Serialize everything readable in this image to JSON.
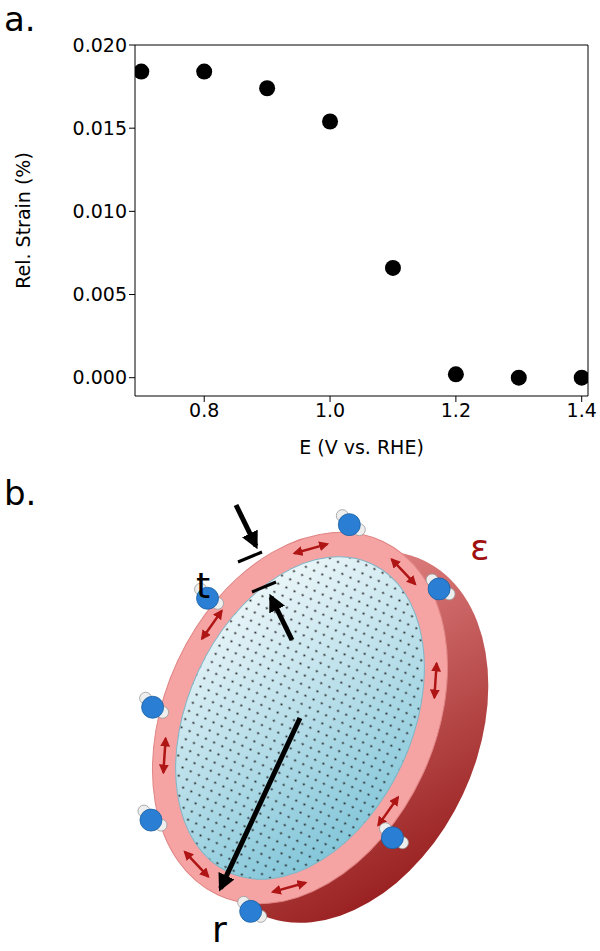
{
  "chart_data": {
    "type": "scatter",
    "panel_label": "a.",
    "x": [
      0.7,
      0.8,
      0.9,
      1.0,
      1.1,
      1.2,
      1.3,
      1.4
    ],
    "values": [
      0.0184,
      0.0184,
      0.0174,
      0.0154,
      0.0066,
      0.0002,
      0.0,
      0.0
    ],
    "color": "#000000",
    "marker": "circle",
    "xlabel": "E (V vs. RHE)",
    "ylabel": "Rel. Strain (%)",
    "xlim": [
      0.69,
      1.41
    ],
    "ylim": [
      -0.0011,
      0.02
    ],
    "xticks": [
      0.8,
      {
        "value": 1.0,
        "label": "1.0"
      },
      1.2,
      1.4
    ],
    "yticks": [
      {
        "value": 0,
        "label": "0.000"
      },
      {
        "value": 0.005,
        "label": "0.005"
      },
      {
        "value": 0.01,
        "label": "0.010"
      },
      {
        "value": 0.015,
        "label": "0.015"
      },
      {
        "value": 0.02,
        "label": "0.020"
      }
    ],
    "grid": false
  },
  "diagram": {
    "panel_label": "b.",
    "labels": {
      "thickness": "t",
      "strain": "ε",
      "radius": "r"
    }
  }
}
